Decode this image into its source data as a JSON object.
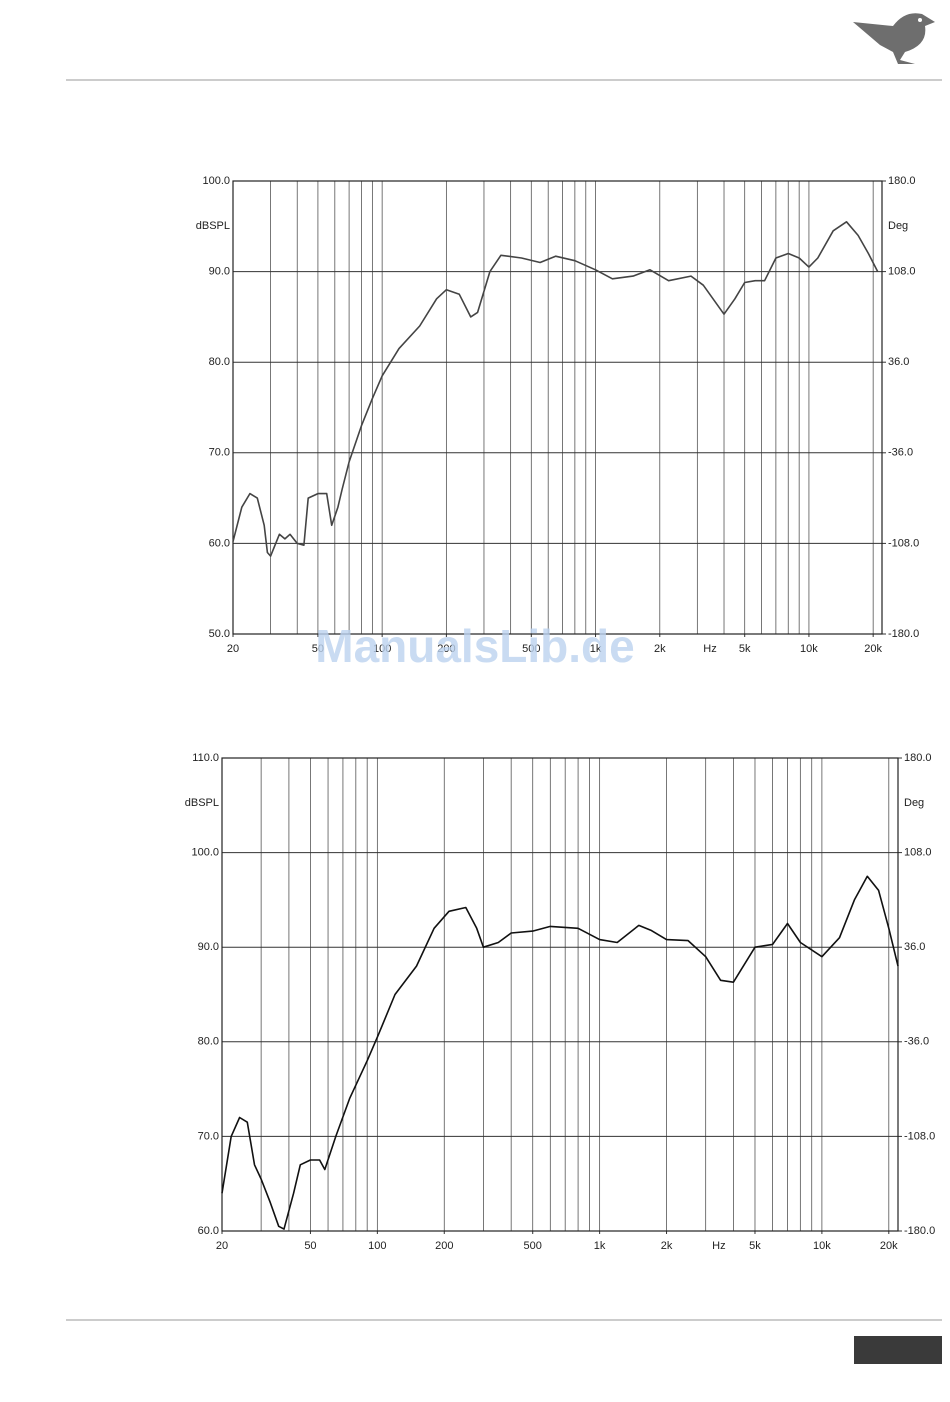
{
  "watermark": "ManualsLib.de",
  "chart_data": [
    {
      "type": "line",
      "xscale": "log",
      "x_label": "Hz",
      "y_label": "dBSPL",
      "y2_label": "Deg",
      "x": [
        20,
        22,
        24,
        26,
        28,
        29,
        30,
        33,
        35,
        37,
        40,
        43,
        45,
        50,
        55,
        58,
        62,
        65,
        70,
        80,
        90,
        100,
        120,
        150,
        180,
        200,
        230,
        260,
        280,
        320,
        360,
        450,
        550,
        650,
        800,
        1000,
        1200,
        1500,
        1800,
        2200,
        2800,
        3200,
        4000,
        4500,
        5000,
        5600,
        6200,
        7000,
        8000,
        9000,
        10000,
        11000,
        13000,
        15000,
        17000,
        19000,
        21000
      ],
      "series": [
        {
          "color": "#444444",
          "values": [
            60.2,
            64,
            65.5,
            65,
            62,
            59,
            58.6,
            61,
            60.5,
            61,
            60,
            59.8,
            65,
            65.5,
            65.5,
            62,
            64,
            66,
            69,
            73,
            76,
            78.5,
            81.5,
            84,
            87,
            88,
            87.5,
            85,
            85.5,
            90,
            91.8,
            91.5,
            91,
            91.7,
            91.2,
            90.2,
            89.2,
            89.5,
            90.2,
            89,
            89.5,
            88.5,
            85.3,
            87,
            88.8,
            89,
            89,
            91.5,
            92,
            91.5,
            90.5,
            91.5,
            94.5,
            95.5,
            94,
            92,
            90
          ]
        }
      ],
      "xlim": [
        20,
        22000
      ],
      "ylim": [
        50,
        100
      ],
      "y2lim": [
        -180,
        180
      ],
      "xticks": [
        20,
        50,
        100,
        200,
        500,
        {
          "value": 1000,
          "label": "1k"
        },
        {
          "value": 2000,
          "label": "2k"
        },
        {
          "value": 5000,
          "label": "5k"
        },
        {
          "value": 10000,
          "label": "10k"
        },
        {
          "value": 20000,
          "label": "20k"
        }
      ],
      "xgrid": [
        30,
        40,
        50,
        60,
        70,
        80,
        90,
        100,
        200,
        300,
        400,
        500,
        600,
        700,
        800,
        900,
        1000,
        2000,
        3000,
        4000,
        5000,
        6000,
        7000,
        8000,
        9000,
        10000,
        20000
      ],
      "yticks": [
        {
          "value": 50,
          "label": "50.0"
        },
        {
          "value": 60,
          "label": "60.0"
        },
        {
          "value": 70,
          "label": "70.0"
        },
        {
          "value": 80,
          "label": "80.0"
        },
        {
          "value": 90,
          "label": "90.0"
        },
        {
          "value": 100,
          "label": "100.0"
        }
      ],
      "y2ticks": [
        {
          "value": -180,
          "label": "-180.0"
        },
        {
          "value": -108,
          "label": "-108.0"
        },
        {
          "value": -36,
          "label": "-36.0"
        },
        {
          "value": 36,
          "label": "36.0"
        },
        {
          "value": 108,
          "label": "108.0"
        },
        {
          "value": 180,
          "label": "180.0"
        }
      ],
      "grid": true
    },
    {
      "type": "line",
      "xscale": "log",
      "x_label": "Hz",
      "y_label": "dBSPL",
      "y2_label": "Deg",
      "x": [
        20,
        22,
        24,
        26,
        28,
        30,
        33,
        36,
        38,
        42,
        45,
        50,
        55,
        58,
        65,
        75,
        90,
        100,
        120,
        150,
        180,
        210,
        250,
        280,
        300,
        350,
        400,
        500,
        600,
        800,
        1000,
        1200,
        1500,
        1700,
        2000,
        2500,
        3000,
        3500,
        4000,
        5000,
        6000,
        7000,
        8000,
        10000,
        12000,
        14000,
        16000,
        18000,
        20000,
        22000
      ],
      "series": [
        {
          "color": "#111111",
          "values": [
            64,
            70,
            72,
            71.5,
            67,
            65.5,
            63,
            60.5,
            60.2,
            64,
            67,
            67.5,
            67.5,
            66.5,
            70,
            74,
            78,
            80.5,
            85,
            88,
            92,
            93.8,
            94.2,
            92,
            90,
            90.5,
            91.5,
            91.7,
            92.2,
            92,
            90.8,
            90.5,
            92.3,
            91.8,
            90.8,
            90.7,
            89,
            86.5,
            86.3,
            90,
            90.3,
            92.5,
            90.5,
            89,
            91,
            95,
            97.5,
            96,
            92,
            88
          ]
        }
      ],
      "xlim": [
        20,
        22000
      ],
      "ylim": [
        60,
        110
      ],
      "y2lim": [
        -180,
        180
      ],
      "xticks": [
        20,
        50,
        100,
        200,
        500,
        {
          "value": 1000,
          "label": "1k"
        },
        {
          "value": 2000,
          "label": "2k"
        },
        {
          "value": 5000,
          "label": "5k"
        },
        {
          "value": 10000,
          "label": "10k"
        },
        {
          "value": 20000,
          "label": "20k"
        }
      ],
      "xgrid": [
        30,
        40,
        50,
        60,
        70,
        80,
        90,
        100,
        200,
        300,
        400,
        500,
        600,
        700,
        800,
        900,
        1000,
        2000,
        3000,
        4000,
        5000,
        6000,
        7000,
        8000,
        9000,
        10000,
        20000
      ],
      "yticks": [
        {
          "value": 60,
          "label": "60.0"
        },
        {
          "value": 70,
          "label": "70.0"
        },
        {
          "value": 80,
          "label": "80.0"
        },
        {
          "value": 90,
          "label": "90.0"
        },
        {
          "value": 100,
          "label": "100.0"
        },
        {
          "value": 110,
          "label": "110.0"
        }
      ],
      "y2ticks": [
        {
          "value": -180,
          "label": "-180.0"
        },
        {
          "value": -108,
          "label": "-108.0"
        },
        {
          "value": -36,
          "label": "-36.0"
        },
        {
          "value": 36,
          "label": "36.0"
        },
        {
          "value": 108,
          "label": "108.0"
        },
        {
          "value": 180,
          "label": "180.0"
        }
      ],
      "grid": true
    }
  ]
}
